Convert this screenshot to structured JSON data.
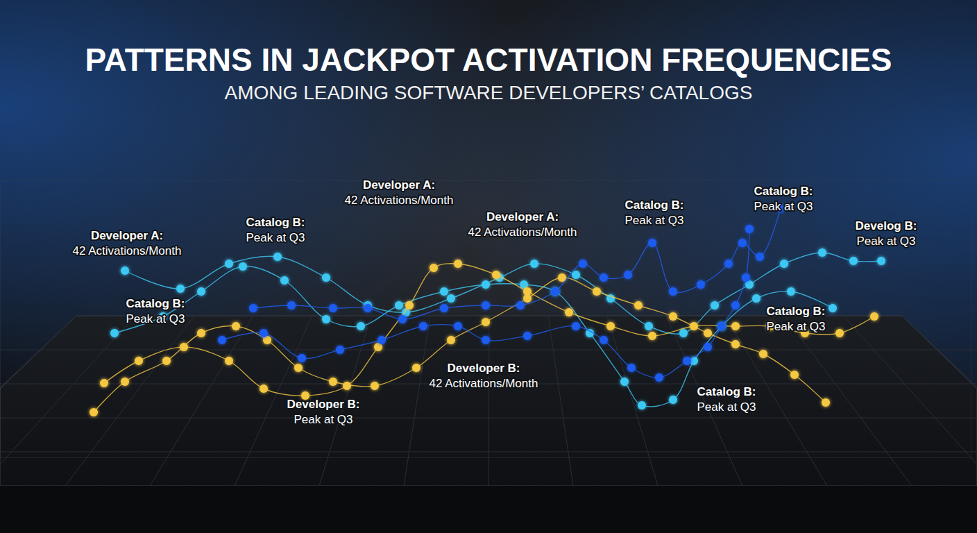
{
  "chart_data": {
    "type": "scatter",
    "title": "PATTERNS IN JACKPOT ACTIVATION FREQUENCIES",
    "subtitle": "AMONG LEADING SOFTWARE DEVELOPERS’ CATALOGS",
    "xlim": [
      0,
      140
    ],
    "ylim": [
      0,
      100
    ],
    "tick_labels": false,
    "marker": "circle",
    "line_style": "solid",
    "series": [
      {
        "color": "#3cc8f4",
        "x": [
          16.5,
          23.5,
          29,
          35,
          41,
          47,
          52,
          57.5,
          64,
          70,
          75.5,
          80,
          85,
          90,
          92.5,
          97,
          100,
          104,
          109,
          114,
          120
        ],
        "values": [
          45,
          51,
          60,
          69,
          64,
          50,
          47.5,
          55,
          60,
          62.5,
          62.5,
          60,
          45,
          27.5,
          19,
          21,
          35,
          47.5,
          57.5,
          60,
          54
        ]
      },
      {
        "color": "#3cc8f4",
        "x": [
          18,
          26,
          33,
          40,
          47,
          53,
          58.5,
          65,
          72,
          77,
          83,
          88,
          93.5,
          98.5,
          103,
          108,
          113,
          118.5,
          123,
          127
        ],
        "values": [
          67.5,
          61,
          70,
          72.5,
          65,
          55,
          52.5,
          57.5,
          65,
          70,
          66,
          57.5,
          47.5,
          45,
          55,
          62.5,
          70,
          74,
          71,
          71
        ]
      },
      {
        "color": "#f5c842",
        "x": [
          13.5,
          18,
          24,
          29,
          34,
          38.5,
          43,
          48,
          54,
          60,
          65,
          70,
          76,
          81,
          86,
          92,
          97,
          102,
          106,
          110,
          114.5,
          119
        ],
        "values": [
          16.5,
          27.5,
          35,
          45,
          47.5,
          42.5,
          32.5,
          27.5,
          26,
          32.5,
          42.5,
          49,
          57.5,
          65,
          60,
          55,
          51,
          45,
          41,
          37.5,
          30,
          20
        ]
      },
      {
        "color": "#f5c842",
        "x": [
          15,
          20,
          26.5,
          33,
          38,
          44,
          50,
          54.5,
          59,
          62.5,
          66,
          71.5,
          76,
          82,
          88,
          94,
          100,
          106,
          111,
          116,
          121,
          126
        ],
        "values": [
          27,
          35,
          40,
          35,
          25,
          22.5,
          26,
          40,
          55,
          68.5,
          70,
          66,
          60,
          52.5,
          47.5,
          44,
          47.5,
          47.5,
          47.5,
          45,
          45,
          51
        ]
      },
      {
        "color": "#1f5cf0",
        "x": [
          32,
          38,
          43.5,
          49,
          55,
          61,
          66,
          70,
          76,
          83,
          87,
          91,
          95,
          99,
          102,
          104,
          106,
          107.5,
          108
        ],
        "values": [
          42.5,
          45,
          36,
          39,
          42.5,
          47.5,
          47.5,
          42.5,
          44,
          47.5,
          42.5,
          32.5,
          29,
          35,
          40,
          47.5,
          55,
          65,
          82.5
        ]
      },
      {
        "color": "#1f5cf0",
        "x": [
          36.5,
          42,
          48,
          53,
          58,
          64,
          70,
          75,
          80,
          84,
          87,
          90.5,
          94,
          97,
          101,
          105,
          107,
          109.5,
          112.5
        ],
        "values": [
          54,
          55,
          54,
          54,
          50,
          54,
          55,
          55,
          60,
          70,
          65,
          66,
          77.5,
          60,
          62.5,
          70,
          77.5,
          72.5,
          90
        ]
      }
    ],
    "annotations": [
      {
        "label": "Developer A:",
        "text": "42 Activations/Month",
        "x": 18.3,
        "y": 78.8
      },
      {
        "label": "Catalog B:",
        "text": "Peak at Q3",
        "x": 39.7,
        "y": 83.5
      },
      {
        "label": "Developer A:",
        "text": "42 Activations/Month",
        "x": 57.5,
        "y": 97
      },
      {
        "label": "Developer A:",
        "text": "42 Activations/Month",
        "x": 75.3,
        "y": 85.5
      },
      {
        "label": "Catalog B:",
        "text": "Peak at Q3",
        "x": 94.3,
        "y": 89.8
      },
      {
        "label": "Catalog B:",
        "text": "Peak at Q3",
        "x": 112.9,
        "y": 94.8
      },
      {
        "label": "Develog B:",
        "text": "Peak at Q3",
        "x": 127.7,
        "y": 82.3
      },
      {
        "label": "Catalog B:",
        "text": "Peak at Q3",
        "x": 22.4,
        "y": 54.3
      },
      {
        "label": "Developer B:",
        "text": "42 Activations/Month",
        "x": 69.7,
        "y": 31
      },
      {
        "label": "Developer B:",
        "text": "Peak at Q3",
        "x": 46.6,
        "y": 18
      },
      {
        "label": "Catalog B:",
        "text": "Peak at Q3",
        "x": 104.7,
        "y": 22.5
      },
      {
        "label": "Catalog B:",
        "text": "Peak at Q3",
        "x": 114.7,
        "y": 51.5
      }
    ]
  }
}
